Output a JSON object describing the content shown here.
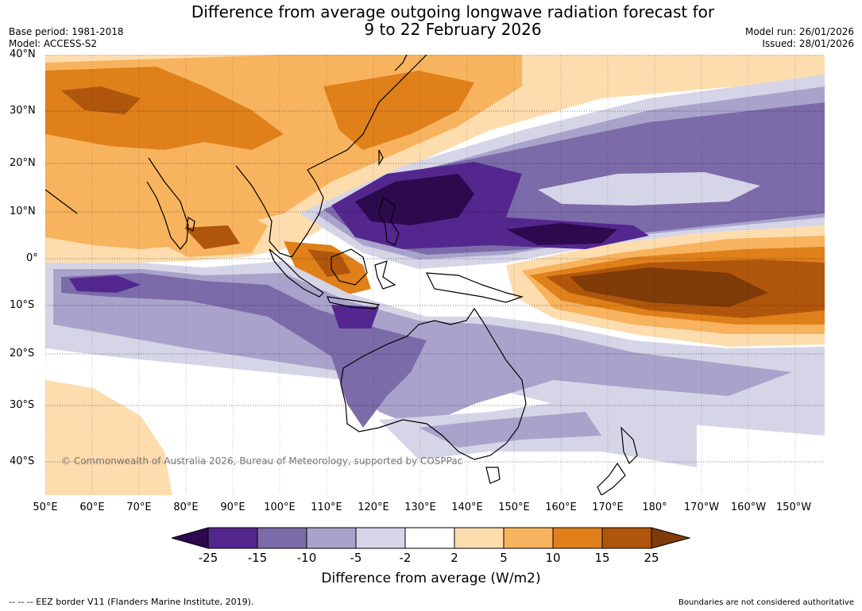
{
  "header": {
    "title_line1": "Difference from average outgoing longwave radiation forecast for",
    "title_line2": "9 to 22 February 2026",
    "base_period": "Base period: 1981-2018",
    "model": "Model: ACCESS-S2",
    "model_run": "Model run: 26/01/2026",
    "issued": "Issued: 28/01/2026"
  },
  "map": {
    "lat_labels": [
      "40°N",
      "30°N",
      "20°N",
      "10°N",
      "0°",
      "10°S",
      "20°S",
      "30°S",
      "40°S"
    ],
    "lon_labels": [
      "50°E",
      "60°E",
      "70°E",
      "80°E",
      "90°E",
      "100°E",
      "110°E",
      "120°E",
      "130°E",
      "140°E",
      "150°E",
      "160°E",
      "170°E",
      "180°",
      "170°W",
      "160°W",
      "150°W"
    ],
    "copyright": "© Commonwealth of Australia 2026, Bureau of Meteorology, supported by COSPPac"
  },
  "legend": {
    "title": "Difference from average (W/m2)",
    "ticks": [
      "-25",
      "-15",
      "-10",
      "-5",
      "-2",
      "2",
      "5",
      "10",
      "15",
      "25"
    ],
    "colors": [
      "#2d0a4e",
      "#54278f",
      "#7b6ba9",
      "#a9a3cc",
      "#d6d5e8",
      "#ffffff",
      "#fddcae",
      "#f8b35e",
      "#df801a",
      "#b0560c",
      "#7f3b08"
    ]
  },
  "footer": {
    "eez_note": "--  --  -- EEZ border V11 (Flanders Marine Institute, 2019).",
    "disclaimer": "Boundaries are not considered authoritative"
  }
}
